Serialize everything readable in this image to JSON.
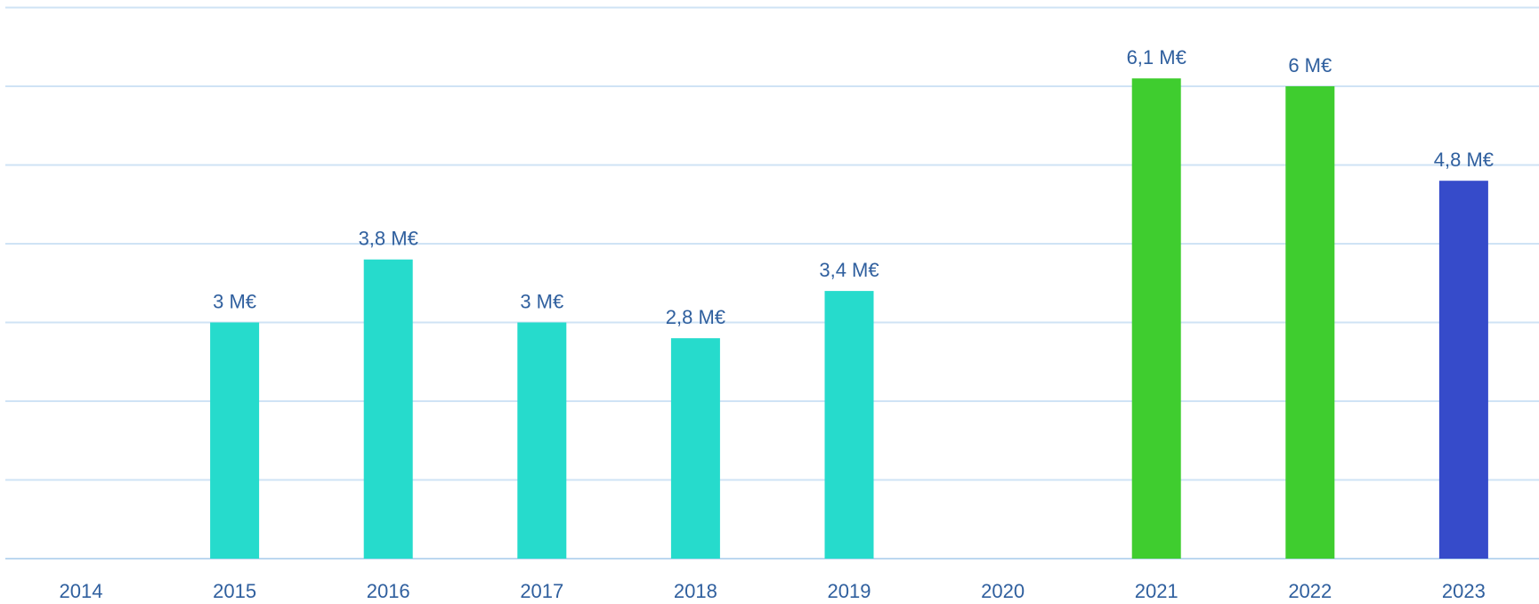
{
  "chart_data": {
    "type": "bar",
    "categories": [
      "2014",
      "2015",
      "2016",
      "2017",
      "2018",
      "2019",
      "2020",
      "2021",
      "2022",
      "2023"
    ],
    "values": [
      null,
      3.0,
      3.8,
      3.0,
      2.8,
      3.4,
      null,
      6.1,
      6.0,
      4.8
    ],
    "value_labels": [
      "",
      "3 M€",
      "3,8 M€",
      "3 M€",
      "2,8 M€",
      "3,4 M€",
      "",
      "6,1 M€",
      "6 M€",
      "4,8 M€"
    ],
    "bar_colors": [
      "#26dbcc",
      "#26dbcc",
      "#26dbcc",
      "#26dbcc",
      "#26dbcc",
      "#26dbcc",
      "#26dbcc",
      "#3fcd2f",
      "#3fcd2f",
      "#364bca"
    ],
    "unit": "M€",
    "ylim": [
      0,
      7
    ],
    "grid": true,
    "title": "",
    "xlabel": "",
    "ylabel": ""
  }
}
